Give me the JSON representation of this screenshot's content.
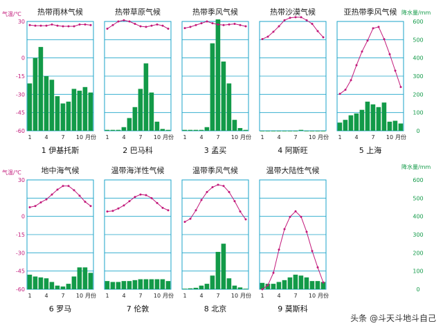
{
  "colors": {
    "temp": "#c2187a",
    "precip": "#129a48",
    "frame": "#1aa3c9",
    "frame_text": "#c2187a",
    "precip_text": "#129a48"
  },
  "axes": {
    "temp_unit": "气温/℃",
    "precip_unit": "降水量/mm",
    "temp_ticks": [
      "30",
      "0",
      "-15",
      "-30",
      "-45",
      "-60"
    ],
    "precip_ticks": [
      "600",
      "500",
      "400",
      "300",
      "200",
      "100",
      "0"
    ],
    "month_ticks": [
      "1",
      "4",
      "7",
      "10",
      "月份"
    ]
  },
  "watermark": "头条 @斗天斗地斗自己",
  "chart_data": [
    {
      "type": "bar+line",
      "title": "热带雨林气候",
      "label": "1 伊基托斯",
      "temp": [
        27,
        26.5,
        26.5,
        26.5,
        27.5,
        26.5,
        26,
        26,
        26,
        27.5,
        27.5,
        27
      ],
      "precip": [
        260,
        400,
        460,
        300,
        280,
        190,
        150,
        160,
        230,
        220,
        240,
        210
      ],
      "temp_range": [
        -60,
        30
      ],
      "precip_range": [
        0,
        600
      ]
    },
    {
      "type": "bar+line",
      "title": "热带草原气候",
      "label": "2 巴马科",
      "temp": [
        24,
        27,
        30,
        31,
        30,
        28,
        26,
        25.5,
        26.5,
        27.5,
        26.5,
        24
      ],
      "precip": [
        5,
        5,
        5,
        20,
        70,
        130,
        230,
        370,
        210,
        50,
        10,
        5
      ],
      "temp_range": [
        -60,
        30
      ],
      "precip_range": [
        0,
        600
      ]
    },
    {
      "type": "bar+line",
      "title": "热带季风气候",
      "label": "3 孟买",
      "temp": [
        24.5,
        25.5,
        27,
        28.5,
        30,
        28.5,
        27.5,
        27,
        27.5,
        28,
        27,
        26
      ],
      "precip": [
        5,
        5,
        5,
        5,
        20,
        480,
        640,
        380,
        260,
        60,
        15,
        5
      ],
      "temp_range": [
        -60,
        30
      ],
      "precip_range": [
        0,
        600
      ]
    },
    {
      "type": "bar+line",
      "title": "热带沙漠气候",
      "label": "4 阿斯旺",
      "temp": [
        15.5,
        17.5,
        21.5,
        26,
        31,
        33,
        33.5,
        33.5,
        31,
        28,
        22,
        17
      ],
      "precip": [
        0,
        0,
        0,
        0,
        0,
        0,
        0,
        5,
        0,
        0,
        0,
        0
      ],
      "temp_range": [
        -60,
        30
      ],
      "precip_range": [
        0,
        600
      ]
    },
    {
      "type": "bar+line",
      "title": "亚热带季风气候",
      "label": "5 上海",
      "temp": [
        3.5,
        5,
        8.5,
        14,
        19,
        23,
        27.5,
        28,
        23.5,
        18,
        12,
        6
      ],
      "precip": [
        45,
        60,
        85,
        95,
        115,
        160,
        145,
        130,
        155,
        50,
        55,
        40
      ],
      "temp_range": [
        -10,
        30
      ],
      "precip_range": [
        0,
        600
      ]
    },
    {
      "type": "bar+line",
      "title": "地中海气候",
      "label": "6 罗马",
      "temp": [
        7.5,
        8.5,
        11.5,
        14,
        18,
        22,
        25,
        25,
        21.5,
        17,
        12,
        8.5
      ],
      "precip": [
        80,
        70,
        65,
        60,
        40,
        20,
        15,
        30,
        70,
        120,
        120,
        90
      ],
      "temp_range": [
        -60,
        30
      ],
      "precip_range": [
        0,
        600
      ]
    },
    {
      "type": "bar+line",
      "title": "温带海洋性气候",
      "label": "7 伦敦",
      "temp": [
        4,
        4.5,
        6.5,
        9,
        12.5,
        16,
        18,
        17.5,
        15,
        11,
        7,
        5
      ],
      "precip": [
        45,
        40,
        40,
        45,
        45,
        50,
        55,
        55,
        55,
        55,
        55,
        45
      ],
      "temp_range": [
        -60,
        30
      ],
      "precip_range": [
        0,
        600
      ]
    },
    {
      "type": "bar+line",
      "title": "温带季风气候",
      "label": "8 北京",
      "temp": [
        -4.5,
        -2,
        5,
        13.5,
        20,
        24,
        26,
        25,
        20,
        12.5,
        4,
        -2.5
      ],
      "precip": [
        3,
        5,
        8,
        20,
        30,
        75,
        205,
        250,
        60,
        20,
        10,
        3
      ],
      "temp_range": [
        -60,
        30
      ],
      "precip_range": [
        0,
        600
      ]
    },
    {
      "type": "bar+line",
      "title": "温带大陆性气候",
      "label": "9 莫斯科",
      "temp": [
        -10,
        -8.5,
        -4,
        4.5,
        12,
        16.5,
        18.5,
        16.5,
        11,
        4,
        -2,
        -7.5
      ],
      "precip": [
        35,
        30,
        30,
        40,
        50,
        65,
        80,
        75,
        65,
        45,
        45,
        40
      ],
      "temp_range": [
        -10,
        30
      ],
      "precip_range": [
        0,
        600
      ]
    }
  ]
}
